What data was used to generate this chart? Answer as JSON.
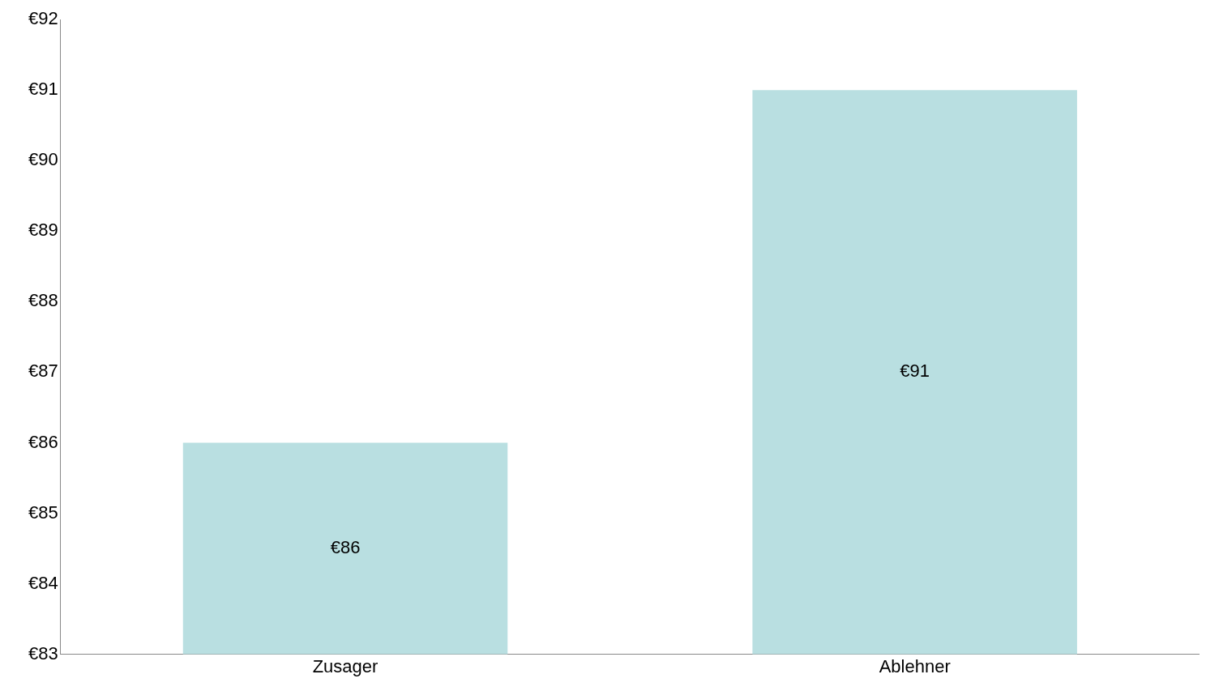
{
  "chart_data": {
    "type": "bar",
    "categories": [
      "Zusager",
      "Ablehner"
    ],
    "values": [
      86,
      91
    ],
    "color": "#b9dfe1",
    "value_labels": [
      "€86",
      "€91"
    ],
    "ylim": [
      83,
      92
    ],
    "yticks": [
      {
        "value": 83,
        "label": "€83"
      },
      {
        "value": 84,
        "label": "€84"
      },
      {
        "value": 85,
        "label": "€85"
      },
      {
        "value": 86,
        "label": "€86"
      },
      {
        "value": 87,
        "label": "€87"
      },
      {
        "value": 88,
        "label": "€88"
      },
      {
        "value": 89,
        "label": "€89"
      },
      {
        "value": 90,
        "label": "€90"
      },
      {
        "value": 91,
        "label": "€91"
      },
      {
        "value": 92,
        "label": "€92"
      }
    ],
    "grid": false,
    "legend": false
  }
}
